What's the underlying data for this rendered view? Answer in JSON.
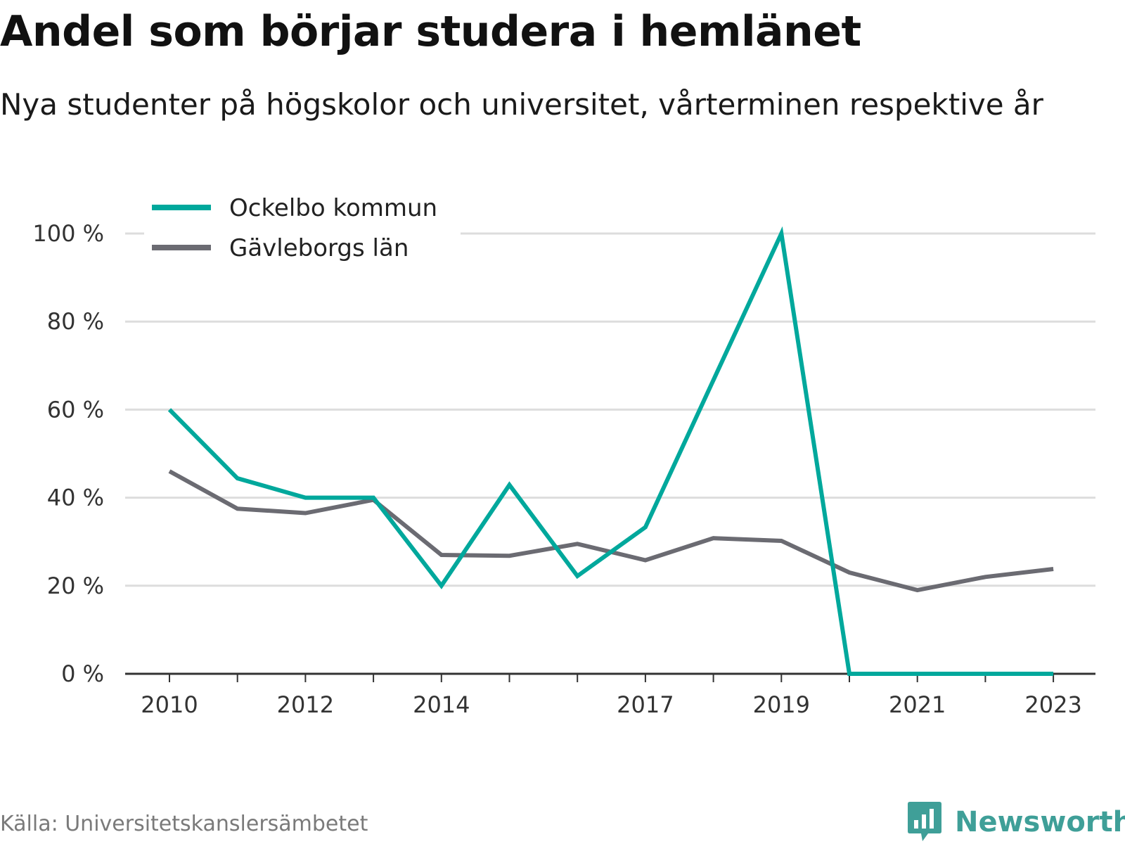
{
  "header": {
    "title": "Andel som börjar studera i hemlänet",
    "subtitle": "Nya studenter på högskolor och universitet, vårterminen respektive år"
  },
  "footer": {
    "source": "Källa: Universitetskanslersämbetet",
    "brand": "Newsworthy",
    "brand_icon": "bar-chart-speech-bubble-icon"
  },
  "colors": {
    "ockelbo": "#00a89c",
    "gavleborg": "#6b6b72",
    "grid": "#dddddd",
    "axis": "#333333",
    "brand": "#3f9f98"
  },
  "chart_data": {
    "type": "line",
    "x": [
      2010,
      2011,
      2012,
      2013,
      2014,
      2015,
      2016,
      2017,
      2018,
      2019,
      2020,
      2021,
      2022,
      2023
    ],
    "x_tick_labels": [
      "2010",
      "2012",
      "2014",
      "2017",
      "2019",
      "2021",
      "2023"
    ],
    "x_ticks": [
      2010,
      2012,
      2014,
      2017,
      2019,
      2021,
      2023
    ],
    "y_ticks": [
      0,
      20,
      40,
      60,
      80,
      100
    ],
    "y_tick_labels": [
      "0 %",
      "20 %",
      "40 %",
      "60 %",
      "80 %",
      "100 %"
    ],
    "ylim": [
      0,
      100
    ],
    "grid": true,
    "legend_position": "top-left",
    "series": [
      {
        "name": "Ockelbo kommun",
        "color": "#00a89c",
        "values": [
          60,
          44.4,
          40,
          40,
          20,
          42.9,
          22.2,
          33.3,
          66.7,
          100,
          0,
          0,
          0,
          0
        ]
      },
      {
        "name": "Gävleborgs län",
        "color": "#6b6b72",
        "values": [
          46,
          37.5,
          36.5,
          39.5,
          27,
          26.8,
          29.5,
          25.8,
          30.8,
          30.2,
          23,
          19,
          22,
          23.8
        ]
      }
    ]
  }
}
